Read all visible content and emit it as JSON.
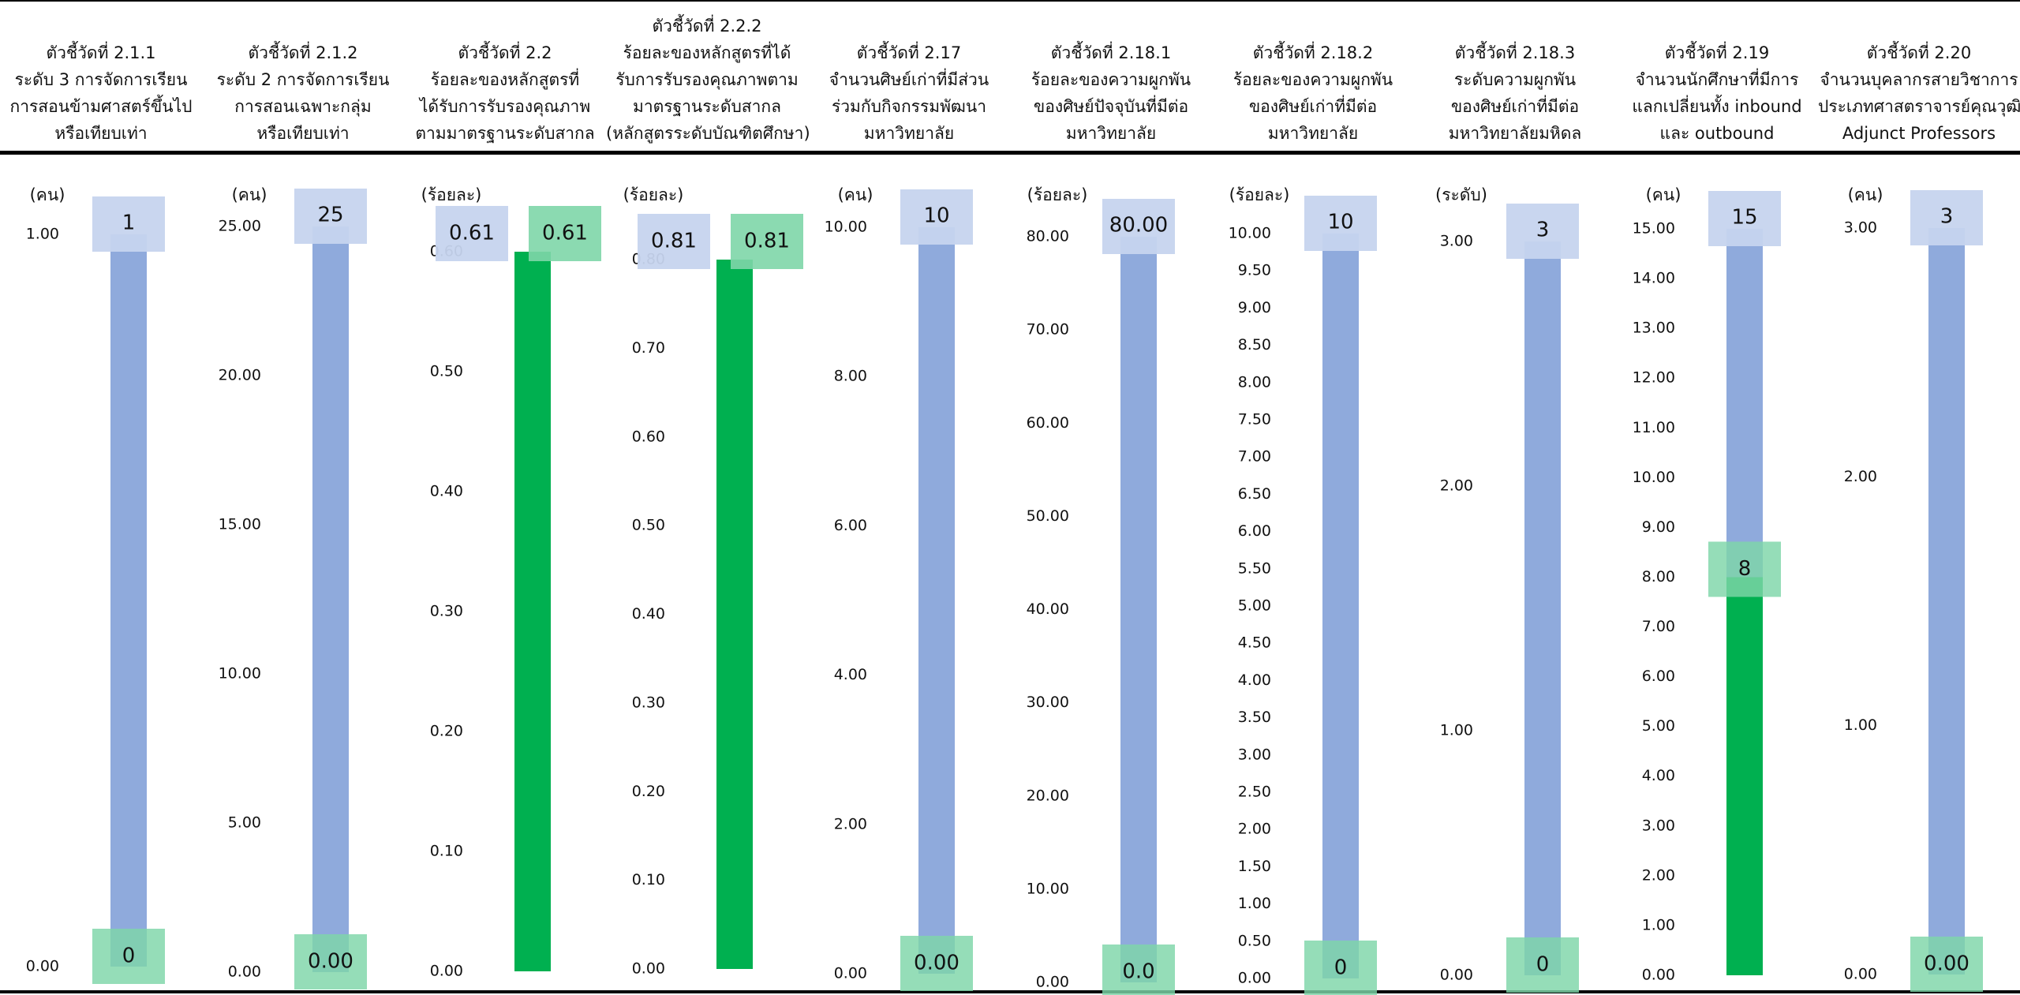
{
  "colors": {
    "target": "#8FAADC",
    "target_box": "#C6D4EE",
    "actual": "#00B050",
    "actual_box": "#7ED6A8"
  },
  "chart_data": [
    {
      "type": "bar",
      "title": [
        "ตัวชี้วัดที่ 2.1.1",
        "ระดับ 3 การจัดการเรียน",
        "การสอนข้ามศาสตร์ขึ้นไป",
        "หรือเทียบเท่า"
      ],
      "ylabel": "(คน)",
      "ylim": [
        0,
        1
      ],
      "ticks": [
        "0.00",
        "1.00"
      ],
      "target": 1,
      "actual": 0,
      "target_label": "1",
      "actual_label": "0"
    },
    {
      "type": "bar",
      "title": [
        "ตัวชี้วัดที่ 2.1.2",
        "ระดับ 2 การจัดการเรียน",
        "การสอนเฉพาะกลุ่ม",
        "หรือเทียบเท่า"
      ],
      "ylabel": "(คน)",
      "ylim": [
        0,
        25
      ],
      "ticks": [
        "0.00",
        "5.00",
        "10.00",
        "15.00",
        "20.00",
        "25.00"
      ],
      "target": 25,
      "actual": 0,
      "target_label": "25",
      "actual_label": "0.00"
    },
    {
      "type": "bar",
      "title": [
        "ตัวชี้วัดที่ 2.2",
        "ร้อยละของหลักสูตรที่",
        "ได้รับการรับรองคุณภาพ",
        "ตามมาตรฐานระดับสากล"
      ],
      "ylabel": "(ร้อยละ)",
      "ylim": [
        0,
        0.6
      ],
      "ticks": [
        "0.00",
        "0.10",
        "0.20",
        "0.30",
        "0.40",
        "0.50",
        "0.60"
      ],
      "target": 0.61,
      "actual": 0.61,
      "target_label": "0.61",
      "actual_label": "0.61"
    },
    {
      "type": "bar",
      "title": [
        "ตัวชี้วัดที่ 2.2.2",
        "ร้อยละของหลักสูตรที่ได้",
        "รับการรับรองคุณภาพตาม",
        "มาตรฐานระดับสากล",
        "(หลักสูตรระดับบัณฑิตศึกษา)"
      ],
      "ylabel": "(ร้อยละ)",
      "ylim": [
        0,
        0.8
      ],
      "ticks": [
        "0.00",
        "0.10",
        "0.20",
        "0.30",
        "0.40",
        "0.50",
        "0.60",
        "0.70",
        "0.80"
      ],
      "target": 0.81,
      "actual": 0.81,
      "target_label": "0.81",
      "actual_label": "0.81"
    },
    {
      "type": "bar",
      "title": [
        "ตัวชี้วัดที่ 2.17",
        "จำนวนศิษย์เก่าที่มีส่วน",
        "ร่วมกับกิจกรรมพัฒนา",
        "มหาวิทยาลัย"
      ],
      "ylabel": "(คน)",
      "ylim": [
        0,
        10
      ],
      "ticks": [
        "0.00",
        "2.00",
        "4.00",
        "6.00",
        "8.00",
        "10.00"
      ],
      "target": 10,
      "actual": 0,
      "target_label": "10",
      "actual_label": "0.00"
    },
    {
      "type": "bar",
      "title": [
        "ตัวชี้วัดที่ 2.18.1",
        "ร้อยละของความผูกพัน",
        "ของศิษย์ปัจจุบันที่มีต่อ",
        "มหาวิทยาลัย"
      ],
      "ylabel": "(ร้อยละ)",
      "ylim": [
        0,
        80
      ],
      "ticks": [
        "0.00",
        "10.00",
        "20.00",
        "30.00",
        "40.00",
        "50.00",
        "60.00",
        "70.00",
        "80.00"
      ],
      "target": 80,
      "actual": 0,
      "target_label": "80.00",
      "actual_label": "0.0"
    },
    {
      "type": "bar",
      "title": [
        "ตัวชี้วัดที่ 2.18.2",
        "ร้อยละของความผูกพัน",
        "ของศิษย์เก่าที่มีต่อ",
        "มหาวิทยาลัย"
      ],
      "ylabel": "(ร้อยละ)",
      "ylim": [
        0,
        10
      ],
      "ticks": [
        "0.00",
        "0.50",
        "1.00",
        "1.50",
        "2.00",
        "2.50",
        "3.00",
        "3.50",
        "4.00",
        "4.50",
        "5.00",
        "5.50",
        "6.00",
        "6.50",
        "7.00",
        "7.50",
        "8.00",
        "8.50",
        "9.00",
        "9.50",
        "10.00"
      ],
      "target": 10,
      "actual": 0,
      "target_label": "10",
      "actual_label": "0"
    },
    {
      "type": "bar",
      "title": [
        "ตัวชี้วัดที่ 2.18.3",
        "ระดับความผูกพัน",
        "ของศิษย์เก่าที่มีต่อ",
        "มหาวิทยาลัยมหิดล"
      ],
      "ylabel": "(ระดับ)",
      "ylim": [
        0,
        3
      ],
      "ticks": [
        "0.00",
        "1.00",
        "2.00",
        "3.00"
      ],
      "target": 3,
      "actual": 0,
      "target_label": "3",
      "actual_label": "0"
    },
    {
      "type": "bar",
      "title": [
        "ตัวชี้วัดที่ 2.19",
        "จำนวนนักศึกษาที่มีการ",
        "แลกเปลี่ยนทั้ง inbound",
        "และ outbound"
      ],
      "ylabel": "(คน)",
      "ylim": [
        0,
        15
      ],
      "ticks": [
        "0.00",
        "1.00",
        "2.00",
        "3.00",
        "4.00",
        "5.00",
        "6.00",
        "7.00",
        "8.00",
        "9.00",
        "10.00",
        "11.00",
        "12.00",
        "13.00",
        "14.00",
        "15.00"
      ],
      "target": 15,
      "actual": 8,
      "target_label": "15",
      "actual_label": "8"
    },
    {
      "type": "bar",
      "title": [
        "ตัวชี้วัดที่ 2.20",
        "จำนวนบุคลากรสายวิชาการ",
        "ประเภทศาสตราจารย์คุณวุฒิ",
        "Adjunct Professors"
      ],
      "ylabel": "(คน)",
      "ylim": [
        0,
        3
      ],
      "ticks": [
        "0.00",
        "1.00",
        "2.00",
        "3.00"
      ],
      "target": 3,
      "actual": 0,
      "target_label": "3",
      "actual_label": "0.00"
    }
  ]
}
